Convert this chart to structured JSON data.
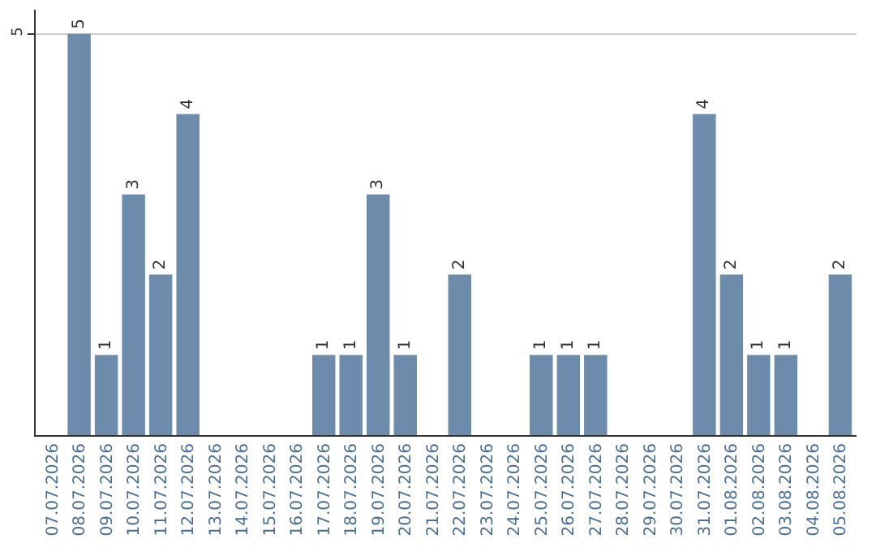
{
  "chart_data": {
    "type": "bar",
    "categories": [
      "07.07.2026",
      "08.07.2026",
      "09.07.2026",
      "10.07.2026",
      "11.07.2026",
      "12.07.2026",
      "13.07.2026",
      "14.07.2026",
      "15.07.2026",
      "16.07.2026",
      "17.07.2026",
      "18.07.2026",
      "19.07.2026",
      "20.07.2026",
      "21.07.2026",
      "22.07.2026",
      "23.07.2026",
      "24.07.2026",
      "25.07.2026",
      "26.07.2026",
      "27.07.2026",
      "28.07.2026",
      "29.07.2026",
      "30.07.2026",
      "31.07.2026",
      "01.08.2026",
      "02.08.2026",
      "03.08.2026",
      "04.08.2026",
      "05.08.2026"
    ],
    "values": [
      0,
      5,
      1,
      3,
      2,
      4,
      0,
      0,
      0,
      0,
      1,
      1,
      3,
      1,
      0,
      2,
      0,
      0,
      1,
      1,
      1,
      0,
      0,
      0,
      4,
      2,
      1,
      1,
      0,
      2
    ],
    "value_labels": [
      null,
      "5",
      "1",
      "3",
      "2",
      "4",
      null,
      null,
      null,
      null,
      "1",
      "1",
      "3",
      "1",
      null,
      "2",
      null,
      null,
      "1",
      "1",
      "1",
      null,
      null,
      null,
      "4",
      "2",
      "1",
      "1",
      null,
      "2"
    ],
    "color": "#6d8cab",
    "ylim": [
      0,
      5.3
    ],
    "yticks": [
      5
    ],
    "grid": "y",
    "legend": false
  }
}
